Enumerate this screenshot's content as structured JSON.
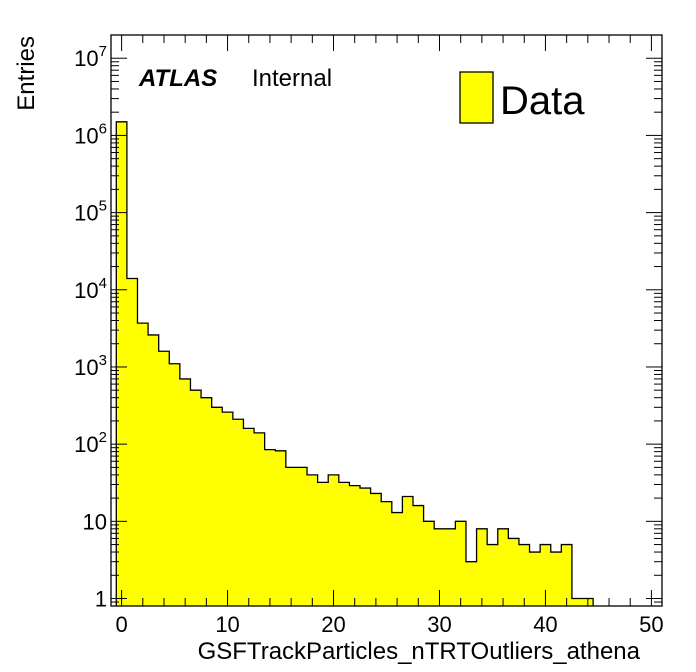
{
  "chart_data": {
    "type": "bar",
    "histogram": true,
    "xlabel": "GSFTrackParticles_nTRTOutliers_athena",
    "ylabel": "Entries",
    "xlim": [
      -1,
      51
    ],
    "ylim": [
      0.8,
      20000000
    ],
    "yscale": "log",
    "bin_width": 1,
    "x_ticks": [
      0,
      10,
      20,
      30,
      40,
      50
    ],
    "y_ticks": [
      {
        "value": 1,
        "base": "1",
        "exp": ""
      },
      {
        "value": 10,
        "base": "10",
        "exp": ""
      },
      {
        "value": 100,
        "base": "10",
        "exp": "2"
      },
      {
        "value": 1000,
        "base": "10",
        "exp": "3"
      },
      {
        "value": 10000,
        "base": "10",
        "exp": "4"
      },
      {
        "value": 100000,
        "base": "10",
        "exp": "5"
      },
      {
        "value": 1000000,
        "base": "10",
        "exp": "6"
      },
      {
        "value": 10000000,
        "base": "10",
        "exp": "7"
      }
    ],
    "bin_edges": [
      -0.5,
      0.5,
      1.5,
      2.5,
      3.5,
      4.5,
      5.5,
      6.5,
      7.5,
      8.5,
      9.5,
      10.5,
      11.5,
      12.5,
      13.5,
      14.5,
      15.5,
      16.5,
      17.5,
      18.5,
      19.5,
      20.5,
      21.5,
      22.5,
      23.5,
      24.5,
      25.5,
      26.5,
      27.5,
      28.5,
      29.5,
      30.5,
      31.5,
      32.5,
      33.5,
      34.5,
      35.5,
      36.5,
      37.5,
      38.5,
      39.5,
      40.5,
      41.5,
      42.5,
      43.5,
      44.5
    ],
    "values": [
      1500000,
      14000,
      3700,
      2600,
      1600,
      1100,
      700,
      500,
      400,
      300,
      260,
      210,
      160,
      140,
      85,
      82,
      50,
      50,
      40,
      32,
      40,
      32,
      29,
      27,
      23,
      18,
      13,
      21,
      16,
      10,
      8,
      8,
      10,
      3,
      8,
      5,
      8,
      6,
      5,
      4,
      5,
      4,
      5,
      1,
      1
    ],
    "series": [
      {
        "name": "Data",
        "color": "#ffff00"
      }
    ],
    "legend_position": "top-right",
    "grid": false
  },
  "annotation": {
    "atlas": "ATLAS",
    "internal": "Internal"
  },
  "colors": {
    "fill": "#ffff00",
    "line": "#000000"
  }
}
